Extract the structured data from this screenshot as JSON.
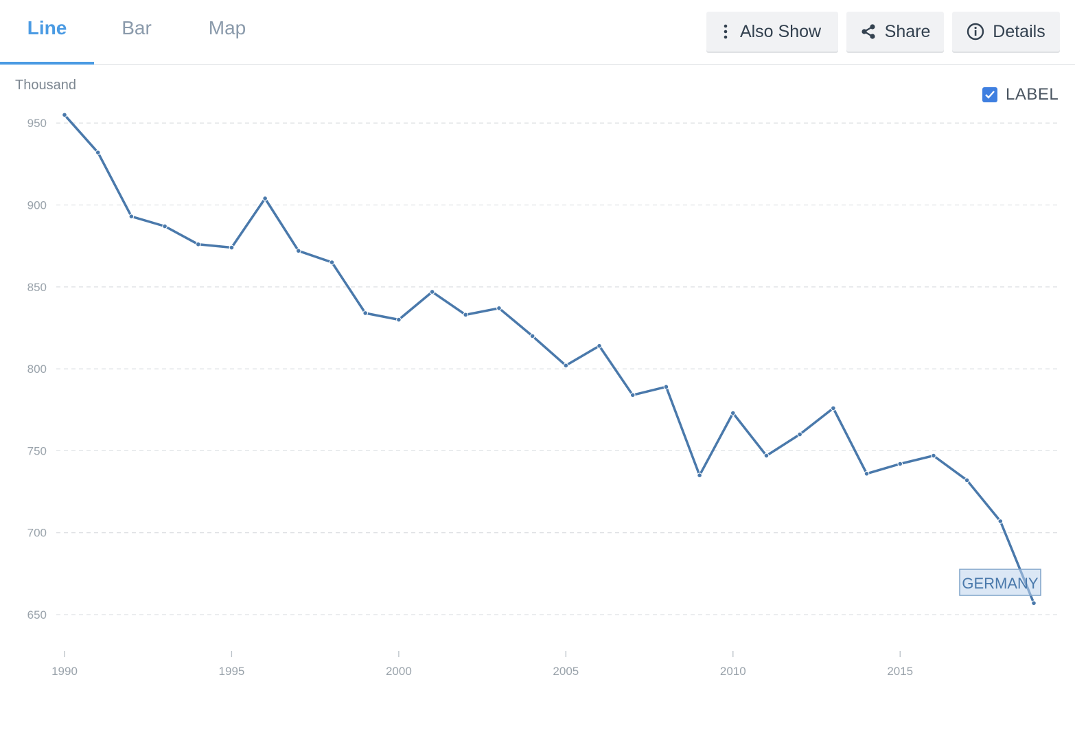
{
  "tabs": [
    {
      "label": "Line",
      "active": true
    },
    {
      "label": "Bar",
      "active": false
    },
    {
      "label": "Map",
      "active": false
    }
  ],
  "toolbar": {
    "also_show_label": "Also Show",
    "share_label": "Share",
    "details_label": "Details"
  },
  "label_toggle": {
    "text": "LABEL",
    "checked": true
  },
  "colors": {
    "accent": "#4b9be3",
    "series": "#4a79ab",
    "checkbox": "#3f7fe0"
  },
  "chart_data": {
    "type": "line",
    "ylabel": "Thousand",
    "xlim": [
      1990,
      2019
    ],
    "ylim": [
      630,
      960
    ],
    "x_ticks": [
      1990,
      1995,
      2000,
      2005,
      2010,
      2015
    ],
    "y_ticks": [
      650,
      700,
      750,
      800,
      850,
      900,
      950
    ],
    "grid": true,
    "series": [
      {
        "name": "GERMANY",
        "x": [
          1990,
          1991,
          1992,
          1993,
          1994,
          1995,
          1996,
          1997,
          1998,
          1999,
          2000,
          2001,
          2002,
          2003,
          2004,
          2005,
          2006,
          2007,
          2008,
          2009,
          2010,
          2011,
          2012,
          2013,
          2014,
          2015,
          2016,
          2017,
          2018,
          2019
        ],
        "values": [
          955,
          932,
          893,
          887,
          876,
          874,
          904,
          872,
          865,
          834,
          830,
          847,
          833,
          837,
          820,
          802,
          814,
          784,
          789,
          735,
          773,
          747,
          760,
          776,
          736,
          742,
          747,
          732,
          707,
          657
        ]
      }
    ]
  }
}
